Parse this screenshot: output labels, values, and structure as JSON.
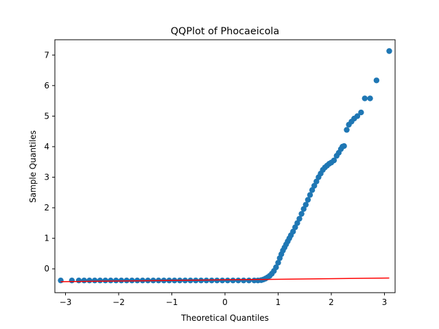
{
  "chart_data": {
    "type": "scatter",
    "title": "QQPlot of Phocaeicola",
    "xlabel": "Theoretical Quantiles",
    "ylabel": "Sample Quantiles",
    "xlim": [
      -3.2,
      3.2
    ],
    "ylim": [
      -0.78,
      7.5
    ],
    "xticks": [
      -3,
      -2,
      -1,
      0,
      1,
      2,
      3
    ],
    "yticks": [
      0,
      1,
      2,
      3,
      4,
      5,
      6,
      7
    ],
    "grid": false,
    "marker_color": "#1f77b4",
    "line_color": "#ff0000",
    "reference_line": {
      "x": [
        -3.09,
        3.09
      ],
      "y": [
        -0.42,
        -0.3
      ]
    },
    "points": [
      [
        -3.09,
        -0.38
      ],
      [
        -2.88,
        -0.38
      ],
      [
        -2.75,
        -0.38
      ],
      [
        -2.65,
        -0.38
      ],
      [
        -2.55,
        -0.38
      ],
      [
        -2.45,
        -0.38
      ],
      [
        -2.35,
        -0.38
      ],
      [
        -2.25,
        -0.38
      ],
      [
        -2.15,
        -0.38
      ],
      [
        -2.05,
        -0.38
      ],
      [
        -1.95,
        -0.38
      ],
      [
        -1.85,
        -0.38
      ],
      [
        -1.75,
        -0.38
      ],
      [
        -1.65,
        -0.38
      ],
      [
        -1.55,
        -0.38
      ],
      [
        -1.45,
        -0.38
      ],
      [
        -1.35,
        -0.38
      ],
      [
        -1.25,
        -0.38
      ],
      [
        -1.15,
        -0.38
      ],
      [
        -1.05,
        -0.38
      ],
      [
        -0.95,
        -0.38
      ],
      [
        -0.85,
        -0.38
      ],
      [
        -0.75,
        -0.38
      ],
      [
        -0.65,
        -0.38
      ],
      [
        -0.55,
        -0.38
      ],
      [
        -0.45,
        -0.38
      ],
      [
        -0.35,
        -0.38
      ],
      [
        -0.25,
        -0.38
      ],
      [
        -0.15,
        -0.38
      ],
      [
        -0.05,
        -0.38
      ],
      [
        0.05,
        -0.38
      ],
      [
        0.15,
        -0.38
      ],
      [
        0.25,
        -0.38
      ],
      [
        0.35,
        -0.38
      ],
      [
        0.45,
        -0.38
      ],
      [
        0.55,
        -0.38
      ],
      [
        0.62,
        -0.38
      ],
      [
        0.68,
        -0.37
      ],
      [
        0.72,
        -0.35
      ],
      [
        0.76,
        -0.32
      ],
      [
        0.8,
        -0.28
      ],
      [
        0.84,
        -0.23
      ],
      [
        0.88,
        -0.16
      ],
      [
        0.92,
        -0.07
      ],
      [
        0.96,
        0.05
      ],
      [
        1.0,
        0.2
      ],
      [
        1.03,
        0.35
      ],
      [
        1.06,
        0.48
      ],
      [
        1.09,
        0.6
      ],
      [
        1.12,
        0.7
      ],
      [
        1.15,
        0.8
      ],
      [
        1.18,
        0.9
      ],
      [
        1.21,
        1.0
      ],
      [
        1.24,
        1.1
      ],
      [
        1.28,
        1.22
      ],
      [
        1.32,
        1.36
      ],
      [
        1.36,
        1.5
      ],
      [
        1.4,
        1.64
      ],
      [
        1.44,
        1.8
      ],
      [
        1.48,
        1.96
      ],
      [
        1.52,
        2.1
      ],
      [
        1.56,
        2.26
      ],
      [
        1.6,
        2.42
      ],
      [
        1.64,
        2.58
      ],
      [
        1.68,
        2.72
      ],
      [
        1.72,
        2.86
      ],
      [
        1.76,
        3.0
      ],
      [
        1.8,
        3.12
      ],
      [
        1.84,
        3.24
      ],
      [
        1.88,
        3.32
      ],
      [
        1.92,
        3.38
      ],
      [
        1.96,
        3.44
      ],
      [
        2.0,
        3.48
      ],
      [
        2.05,
        3.55
      ],
      [
        2.1,
        3.7
      ],
      [
        2.14,
        3.8
      ],
      [
        2.18,
        3.92
      ],
      [
        2.21,
        4.0
      ],
      [
        2.24,
        4.02
      ],
      [
        2.29,
        4.55
      ],
      [
        2.33,
        4.72
      ],
      [
        2.38,
        4.82
      ],
      [
        2.43,
        4.92
      ],
      [
        2.49,
        5.0
      ],
      [
        2.56,
        5.12
      ],
      [
        2.63,
        5.58
      ],
      [
        2.73,
        5.58
      ],
      [
        2.85,
        6.17
      ],
      [
        3.09,
        7.13
      ]
    ]
  }
}
